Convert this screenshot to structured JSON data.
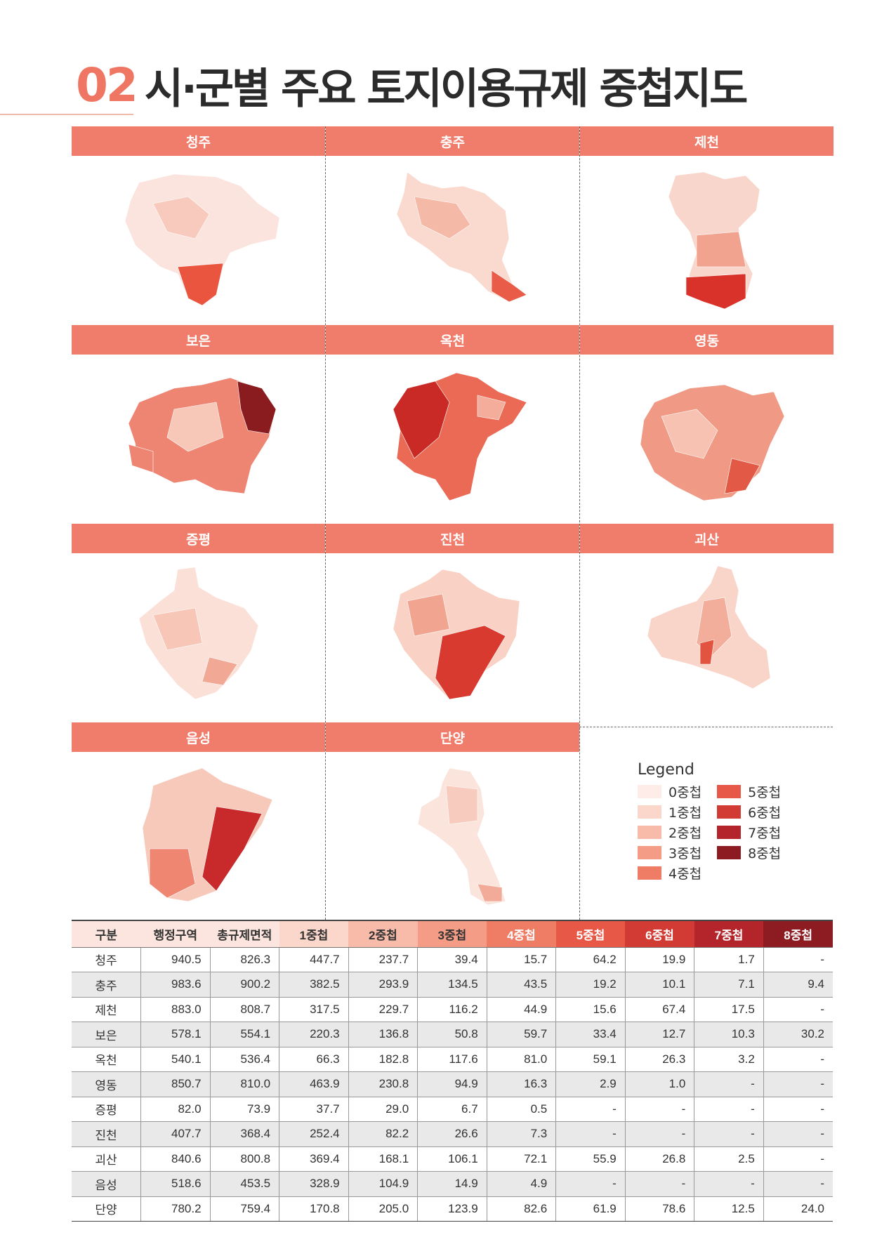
{
  "title": {
    "number": "02",
    "text": "시·군별 주요 토지이용규제 중첩지도"
  },
  "maps": [
    {
      "name": "청주",
      "colors": [
        "#fbe4dd",
        "#f7cabd",
        "#e9553f"
      ]
    },
    {
      "name": "충주",
      "colors": [
        "#fad9ce",
        "#f5b9a8",
        "#e85c48"
      ]
    },
    {
      "name": "제천",
      "colors": [
        "#f9d6cb",
        "#f2a390",
        "#d8322a"
      ]
    },
    {
      "name": "보은",
      "colors": [
        "#f7c7b8",
        "#ee8572",
        "#8a1c1f"
      ]
    },
    {
      "name": "옥천",
      "colors": [
        "#f4ad9a",
        "#ea6a55",
        "#c92a26"
      ]
    },
    {
      "name": "영동",
      "colors": [
        "#f7c2b2",
        "#f09a86",
        "#e25a45"
      ]
    },
    {
      "name": "증평",
      "colors": [
        "#fbe0d7",
        "#f7c6b7",
        "#f1a895"
      ]
    },
    {
      "name": "진천",
      "colors": [
        "#f9d2c5",
        "#f1a591",
        "#d93a30"
      ]
    },
    {
      "name": "괴산",
      "colors": [
        "#f9d5c9",
        "#f3ae9b",
        "#e2543f"
      ]
    },
    {
      "name": "음성",
      "colors": [
        "#f7c9ba",
        "#ee8672",
        "#c8292a"
      ]
    },
    {
      "name": "단양",
      "colors": [
        "#fbe4dc",
        "#f7cbbd",
        "#f2ab98"
      ]
    }
  ],
  "legend": {
    "title": "Legend",
    "items": [
      {
        "label": "0중첩",
        "color": "#fdece7"
      },
      {
        "label": "1중첩",
        "color": "#fbd6cb"
      },
      {
        "label": "2중첩",
        "color": "#f8bba9"
      },
      {
        "label": "3중첩",
        "color": "#f49c86"
      },
      {
        "label": "4중첩",
        "color": "#ef7c65"
      },
      {
        "label": "5중첩",
        "color": "#e85846"
      },
      {
        "label": "6중첩",
        "color": "#d23b34"
      },
      {
        "label": "7중첩",
        "color": "#b3252a"
      },
      {
        "label": "8중첩",
        "color": "#8d1c22"
      }
    ]
  },
  "table": {
    "headers": [
      {
        "label": "구분",
        "bg": "#fbe5de",
        "fg": "#333333"
      },
      {
        "label": "행정구역",
        "bg": "#fbe5de",
        "fg": "#333333"
      },
      {
        "label": "총규제면적",
        "bg": "#fbe5de",
        "fg": "#333333"
      },
      {
        "label": "1중첩",
        "bg": "#fbd6cb",
        "fg": "#333333"
      },
      {
        "label": "2중첩",
        "bg": "#f8bba9",
        "fg": "#333333"
      },
      {
        "label": "3중첩",
        "bg": "#f49c86",
        "fg": "#333333"
      },
      {
        "label": "4중첩",
        "bg": "#ef7c65",
        "fg": "#ffffff"
      },
      {
        "label": "5중첩",
        "bg": "#e85846",
        "fg": "#ffffff"
      },
      {
        "label": "6중첩",
        "bg": "#d23b34",
        "fg": "#ffffff"
      },
      {
        "label": "7중첩",
        "bg": "#b3252a",
        "fg": "#ffffff"
      },
      {
        "label": "8중첩",
        "bg": "#8d1c22",
        "fg": "#ffffff"
      }
    ],
    "rows": [
      [
        "청주",
        "940.5",
        "826.3",
        "447.7",
        "237.7",
        "39.4",
        "15.7",
        "64.2",
        "19.9",
        "1.7",
        "-"
      ],
      [
        "충주",
        "983.6",
        "900.2",
        "382.5",
        "293.9",
        "134.5",
        "43.5",
        "19.2",
        "10.1",
        "7.1",
        "9.4"
      ],
      [
        "제천",
        "883.0",
        "808.7",
        "317.5",
        "229.7",
        "116.2",
        "44.9",
        "15.6",
        "67.4",
        "17.5",
        "-"
      ],
      [
        "보은",
        "578.1",
        "554.1",
        "220.3",
        "136.8",
        "50.8",
        "59.7",
        "33.4",
        "12.7",
        "10.3",
        "30.2"
      ],
      [
        "옥천",
        "540.1",
        "536.4",
        "66.3",
        "182.8",
        "117.6",
        "81.0",
        "59.1",
        "26.3",
        "3.2",
        "-"
      ],
      [
        "영동",
        "850.7",
        "810.0",
        "463.9",
        "230.8",
        "94.9",
        "16.3",
        "2.9",
        "1.0",
        "-",
        "-"
      ],
      [
        "증평",
        "82.0",
        "73.9",
        "37.7",
        "29.0",
        "6.7",
        "0.5",
        "-",
        "-",
        "-",
        "-"
      ],
      [
        "진천",
        "407.7",
        "368.4",
        "252.4",
        "82.2",
        "26.6",
        "7.3",
        "-",
        "-",
        "-",
        "-"
      ],
      [
        "괴산",
        "840.6",
        "800.8",
        "369.4",
        "168.1",
        "106.1",
        "72.1",
        "55.9",
        "26.8",
        "2.5",
        "-"
      ],
      [
        "음성",
        "518.6",
        "453.5",
        "328.9",
        "104.9",
        "14.9",
        "4.9",
        "-",
        "-",
        "-",
        "-"
      ],
      [
        "단양",
        "780.2",
        "759.4",
        "170.8",
        "205.0",
        "123.9",
        "82.6",
        "61.9",
        "78.6",
        "12.5",
        "24.0"
      ]
    ]
  }
}
